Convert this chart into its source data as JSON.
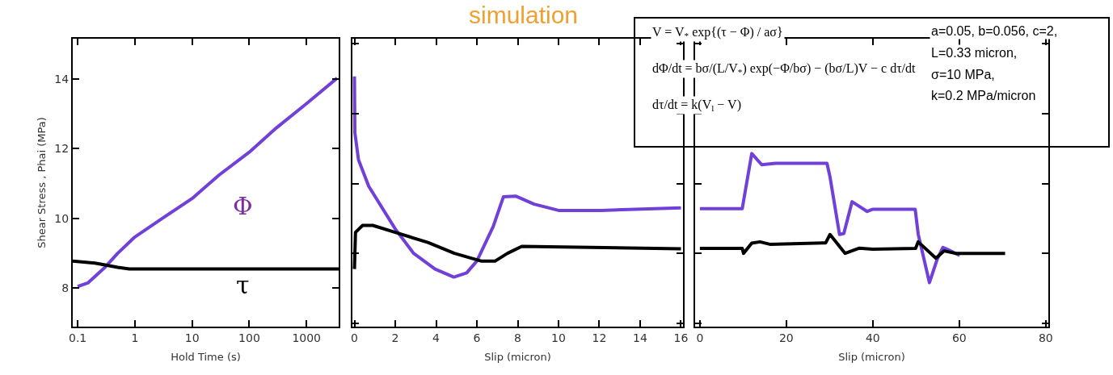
{
  "chart_data": [
    {
      "type": "line",
      "xlabel": "Hold Time (s)",
      "ylabel": "Shear Stress , Phai (MPa)",
      "log": "x",
      "xlim": [
        0.082,
        3650
      ],
      "xticks": [
        0.1,
        1,
        10,
        100,
        1000
      ],
      "ylim": [
        6.9,
        15.15
      ],
      "yticks": [
        8,
        10,
        12,
        14
      ],
      "marker": "none",
      "line_style": "solid",
      "series": [
        {
          "color": "#7040d8",
          "x": [
            0.1,
            0.15,
            0.3,
            0.5,
            1,
            3,
            10,
            30,
            100,
            300,
            1000,
            3430
          ],
          "values": [
            8.05,
            8.15,
            8.6,
            9.0,
            9.47,
            10.0,
            10.57,
            11.25,
            11.9,
            12.6,
            13.29,
            14.02
          ]
        },
        {
          "color": "#000000",
          "x": [
            0.082,
            0.2,
            0.3,
            0.5,
            0.8,
            10,
            100,
            1000,
            3650
          ],
          "values": [
            8.78,
            8.72,
            8.67,
            8.6,
            8.55,
            8.55,
            8.55,
            8.55,
            8.55
          ]
        }
      ],
      "annotations": [
        "Φ",
        "τ"
      ]
    },
    {
      "type": "line",
      "xlabel": "Slip (micron)",
      "xlim": [
        -0.1,
        16.1
      ],
      "xticks": [
        0,
        2,
        4,
        6,
        8,
        10,
        12,
        14,
        16
      ],
      "ylim": [
        6.9,
        15.15
      ],
      "yticks": [
        {
          "value": 7,
          "label": null
        },
        {
          "value": 9,
          "label": null
        },
        {
          "value": 11,
          "label": null
        },
        {
          "value": 13,
          "label": null
        },
        {
          "value": 15,
          "label": null
        }
      ],
      "tick_labels": "x",
      "marker": "none",
      "line_style": "solid",
      "series": [
        {
          "color": "#7040d8",
          "x": [
            0,
            0.02,
            0.2,
            0.7,
            2,
            2.9,
            3.95,
            4.87,
            5.5,
            6.0,
            6.8,
            7.3,
            7.9,
            8.8,
            10,
            12.1,
            16
          ],
          "values": [
            14.07,
            12.46,
            11.68,
            10.92,
            9.7,
            9.0,
            8.55,
            8.32,
            8.44,
            8.78,
            9.77,
            10.62,
            10.64,
            10.41,
            10.23,
            10.23,
            10.3
          ]
        },
        {
          "color": "#000000",
          "x": [
            0,
            0.05,
            0.4,
            0.9,
            2,
            3.6,
            4.9,
            6.2,
            6.9,
            7.5,
            8.2,
            10.2,
            16
          ],
          "values": [
            8.55,
            9.6,
            9.8,
            9.8,
            9.6,
            9.31,
            9.0,
            8.78,
            8.78,
            9.0,
            9.2,
            9.18,
            9.13
          ]
        }
      ]
    },
    {
      "type": "line",
      "xlabel": "Slip (micron)",
      "xlim": [
        -1.1,
        80.6
      ],
      "xticks": [
        0,
        20,
        40,
        60,
        80
      ],
      "ylim": [
        6.9,
        15.15
      ],
      "yticks": [
        {
          "value": 7,
          "label": null
        },
        {
          "value": 9,
          "label": null
        },
        {
          "value": 11,
          "label": null
        },
        {
          "value": 13,
          "label": null
        },
        {
          "value": 15,
          "label": null
        }
      ],
      "tick_labels": "x",
      "marker": "none",
      "line_style": "solid",
      "series": [
        {
          "color": "#7040d8",
          "x": [
            0,
            9.8,
            12.0,
            14.3,
            17.5,
            29.4,
            30.1,
            32.3,
            33.3,
            35.2,
            38.7,
            39.9,
            49.8,
            50.5,
            53.1,
            54.9,
            56.2,
            57.5,
            60.1
          ],
          "values": [
            10.28,
            10.28,
            11.86,
            11.54,
            11.58,
            11.58,
            11.19,
            9.54,
            9.57,
            10.48,
            10.2,
            10.26,
            10.26,
            9.55,
            8.16,
            8.83,
            9.17,
            9.1,
            8.94
          ]
        },
        {
          "color": "#000000",
          "x": [
            0,
            9.8,
            10.1,
            12,
            13.9,
            16.2,
            29.1,
            30.1,
            33.6,
            36.9,
            40,
            49.9,
            50.5,
            54.6,
            56.5,
            59.1,
            70.6
          ],
          "values": [
            9.14,
            9.14,
            9.0,
            9.29,
            9.33,
            9.26,
            9.3,
            9.54,
            9.0,
            9.15,
            9.12,
            9.14,
            9.33,
            8.86,
            9.07,
            9.0,
            9.0
          ]
        }
      ]
    },
    {
      "type": "other",
      "title": "simulation",
      "annotations": [
        "V = V$_{*}$ exp{(τ − Φ) / aσ}",
        "dΦ/dt = bσ/(L/V$_{*}$) exp(−Φ/bσ) − (bσ/L)V − c dτ/dt",
        "dτ/dt = k(V$_{l}$ − V)",
        "a=0.05, b=0.056, c=2,",
        "L=0.33 micron,",
        "σ=10 MPa,",
        "k=0.2 MPa/micron"
      ]
    }
  ]
}
